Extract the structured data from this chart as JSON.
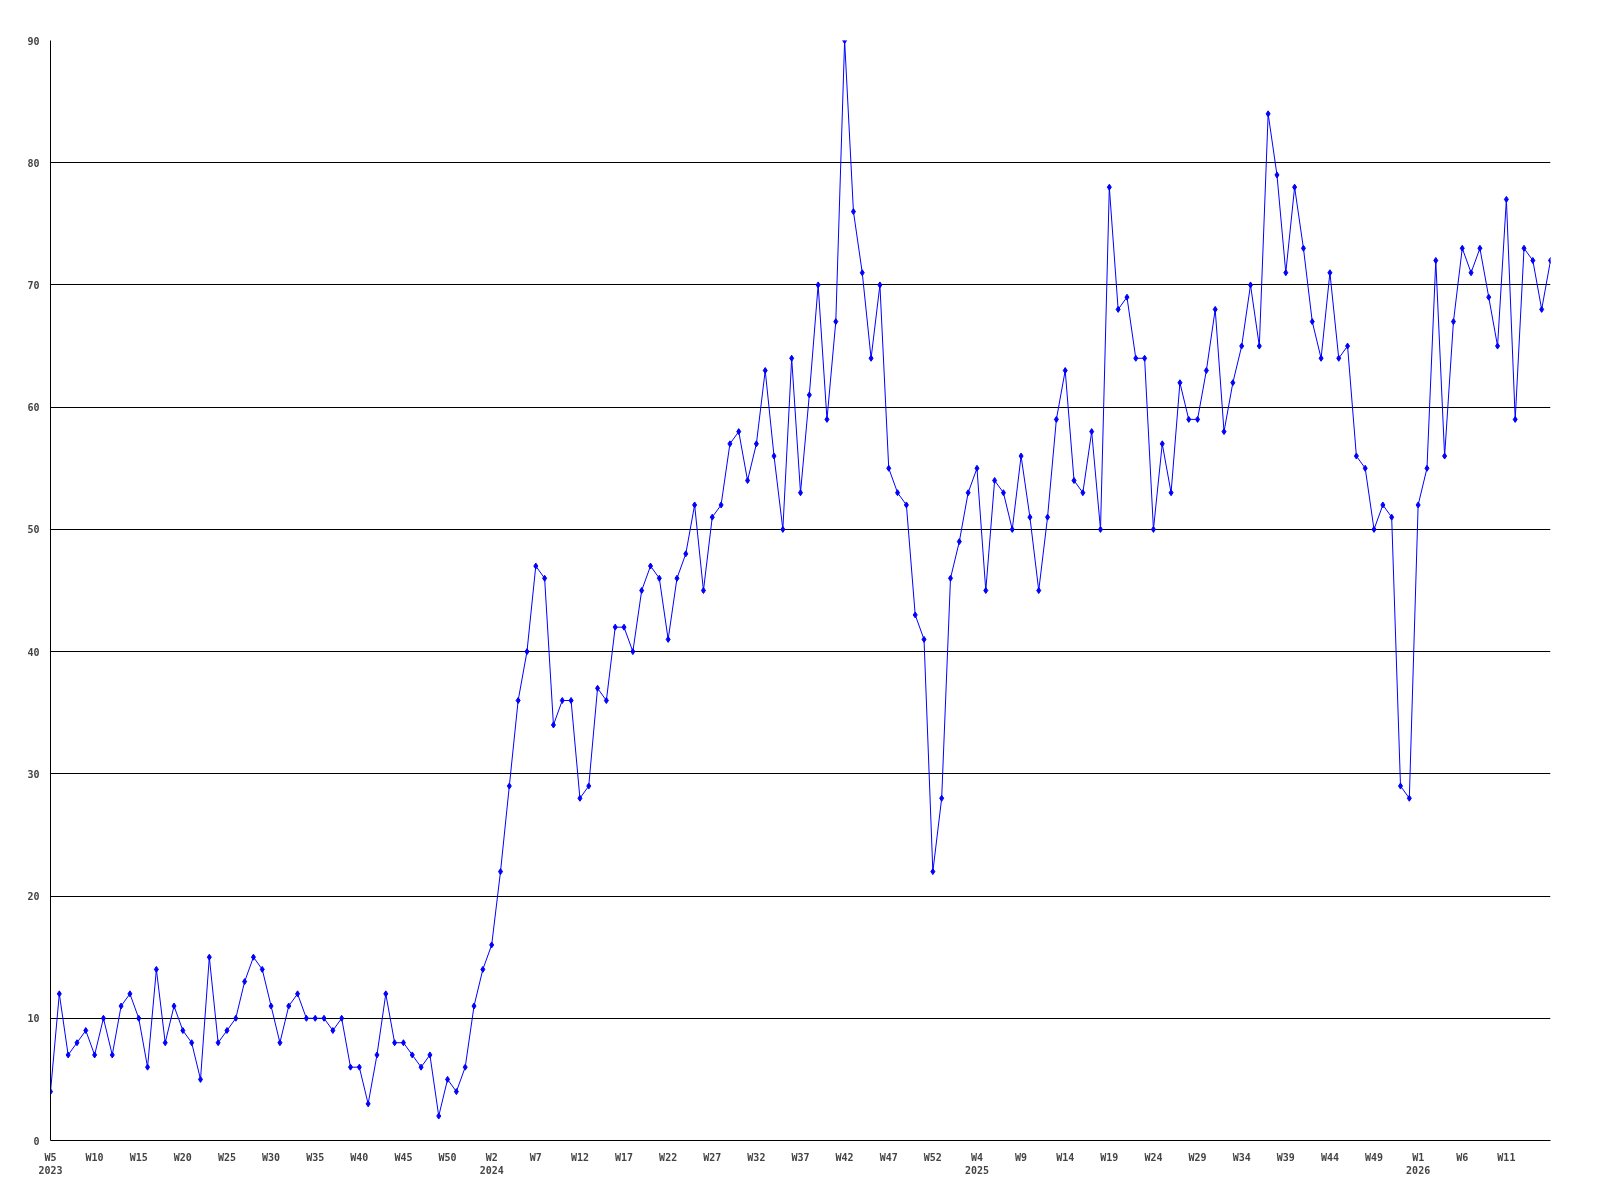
{
  "chart_data": {
    "type": "line",
    "categories": [
      "W5\n2023",
      null,
      null,
      null,
      null,
      "W10",
      null,
      null,
      null,
      null,
      "W15",
      null,
      null,
      null,
      null,
      "W20",
      null,
      null,
      null,
      null,
      "W25",
      null,
      null,
      null,
      null,
      "W30",
      null,
      null,
      null,
      null,
      "W35",
      null,
      null,
      null,
      null,
      "W40",
      null,
      null,
      null,
      null,
      "W45",
      null,
      null,
      null,
      null,
      "W50",
      null,
      null,
      null,
      null,
      "W2\n2024",
      null,
      null,
      null,
      null,
      "W7",
      null,
      null,
      null,
      null,
      "W12",
      null,
      null,
      null,
      null,
      "W17",
      null,
      null,
      null,
      null,
      "W22",
      null,
      null,
      null,
      null,
      "W27",
      null,
      null,
      null,
      null,
      "W32",
      null,
      null,
      null,
      null,
      "W37",
      null,
      null,
      null,
      null,
      "W42",
      null,
      null,
      null,
      null,
      "W47",
      null,
      null,
      null,
      null,
      "W52",
      null,
      null,
      null,
      null,
      "W4\n2025",
      null,
      null,
      null,
      null,
      "W9",
      null,
      null,
      null,
      null,
      "W14",
      null,
      null,
      null,
      null,
      "W19",
      null,
      null,
      null,
      null,
      "W24",
      null,
      null,
      null,
      null,
      "W29",
      null,
      null,
      null,
      null,
      "W34",
      null,
      null,
      null,
      null,
      "W39",
      null,
      null,
      null,
      null,
      "W44",
      null,
      null,
      null,
      null,
      "W49",
      null,
      null,
      null,
      null,
      "W1\n2026",
      null,
      null,
      null,
      null,
      "W6",
      null,
      null,
      null,
      null,
      "W11",
      null,
      null,
      null,
      null,
      null
    ],
    "series": [
      {
        "color": "#0000ff",
        "values": [
          4,
          12,
          7,
          8,
          9,
          7,
          10,
          7,
          11,
          12,
          10,
          6,
          14,
          8,
          11,
          9,
          8,
          5,
          15,
          8,
          9,
          10,
          13,
          15,
          14,
          11,
          8,
          11,
          12,
          10,
          10,
          10,
          9,
          10,
          6,
          6,
          3,
          7,
          12,
          8,
          8,
          7,
          6,
          7,
          2,
          5,
          4,
          6,
          11,
          14,
          16,
          22,
          29,
          36,
          40,
          47,
          46,
          34,
          36,
          36,
          28,
          29,
          37,
          36,
          42,
          42,
          40,
          45,
          47,
          46,
          41,
          46,
          48,
          52,
          45,
          51,
          52,
          57,
          58,
          54,
          57,
          63,
          56,
          50,
          64,
          53,
          61,
          70,
          59,
          67,
          90,
          76,
          71,
          64,
          70,
          55,
          53,
          52,
          43,
          41,
          22,
          28,
          46,
          49,
          53,
          55,
          45,
          54,
          53,
          50,
          56,
          51,
          45,
          51,
          59,
          63,
          54,
          53,
          58,
          50,
          78,
          68,
          69,
          64,
          64,
          50,
          57,
          53,
          62,
          59,
          59,
          63,
          68,
          58,
          62,
          65,
          70,
          65,
          84,
          79,
          71,
          78,
          73,
          67,
          64,
          71,
          64,
          65,
          56,
          55,
          50,
          52,
          51,
          29,
          28,
          52,
          55,
          72,
          56,
          67,
          73,
          71,
          73,
          69,
          65,
          77,
          59,
          73,
          72,
          68,
          72
        ]
      }
    ],
    "ylim": [
      0,
      90
    ],
    "yticks": [
      0,
      10,
      20,
      30,
      40,
      50,
      60,
      70,
      80,
      90
    ],
    "grid": "y",
    "marker": "diamond",
    "line_style": "solid"
  }
}
